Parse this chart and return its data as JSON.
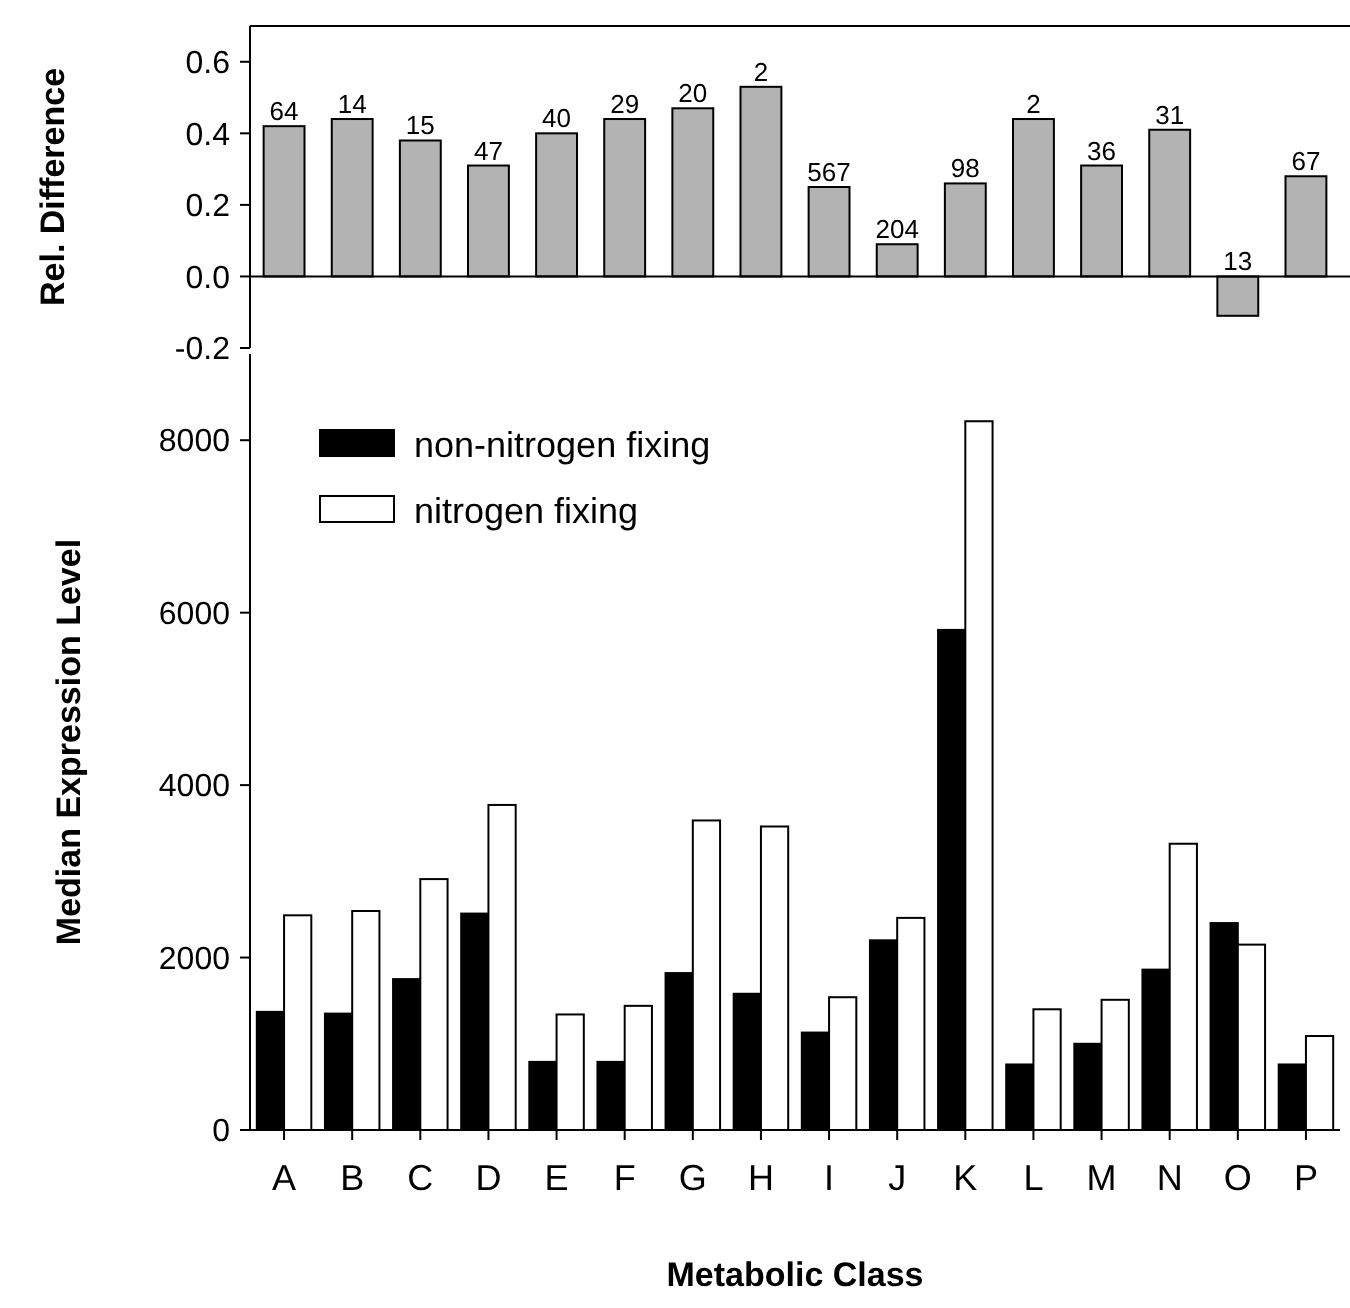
{
  "chart_data": [
    {
      "type": "bar",
      "ylabel": "Rel. Difference",
      "categories": [
        "A",
        "B",
        "C",
        "D",
        "E",
        "F",
        "G",
        "H",
        "I",
        "J",
        "K",
        "L",
        "M",
        "N",
        "O",
        "P"
      ],
      "tick_labels": "y",
      "ylim": [
        -0.2,
        0.7
      ],
      "yticks": [
        {
          "value": -0.2,
          "label": "-0.2"
        },
        {
          "value": 0,
          "label": "0.0"
        },
        {
          "value": 0.2,
          "label": "0.2"
        },
        {
          "value": 0.4,
          "label": "0.4"
        },
        {
          "value": 0.6,
          "label": "0.6"
        }
      ],
      "ref_lines": [
        {
          "axis": "y",
          "value": 0,
          "color": "#000000"
        }
      ],
      "series": [
        {
          "color": "#b3b3b3",
          "values": [
            0.42,
            0.44,
            0.38,
            0.31,
            0.4,
            0.44,
            0.47,
            0.53,
            0.25,
            0.09,
            0.26,
            0.44,
            0.31,
            0.41,
            -0.11,
            0.28
          ]
        }
      ],
      "annotations": [
        {
          "text": "64",
          "x": "A",
          "y": 0.42
        },
        {
          "text": "14",
          "x": "B",
          "y": 0.44
        },
        {
          "text": "15",
          "x": "C",
          "y": 0.38
        },
        {
          "text": "47",
          "x": "D",
          "y": 0.31
        },
        {
          "text": "40",
          "x": "E",
          "y": 0.4
        },
        {
          "text": "29",
          "x": "F",
          "y": 0.44
        },
        {
          "text": "20",
          "x": "G",
          "y": 0.47
        },
        {
          "text": "2",
          "x": "H",
          "y": 0.53
        },
        {
          "text": "567",
          "x": "I",
          "y": 0.25
        },
        {
          "text": "204",
          "x": "J",
          "y": 0.09
        },
        {
          "text": "98",
          "x": "K",
          "y": 0.26
        },
        {
          "text": "2",
          "x": "L",
          "y": 0.44
        },
        {
          "text": "36",
          "x": "M",
          "y": 0.31
        },
        {
          "text": "31",
          "x": "N",
          "y": 0.41
        },
        {
          "text": "13",
          "x": "O",
          "y": 0
        },
        {
          "text": "67",
          "x": "P",
          "y": 0.28
        }
      ]
    },
    {
      "type": "bar",
      "xlabel": "Metabolic Class",
      "ylabel": "Median Expression Level",
      "categories": [
        "A",
        "B",
        "C",
        "D",
        "E",
        "F",
        "G",
        "H",
        "I",
        "J",
        "K",
        "L",
        "M",
        "N",
        "O",
        "P"
      ],
      "ylim": [
        0,
        9000
      ],
      "yticks": [
        0,
        2000,
        4000,
        6000,
        8000
      ],
      "legend": "top left",
      "series": [
        {
          "name": "non-nitrogen fixing",
          "color": "#000000",
          "values": [
            1370,
            1350,
            1750,
            2510,
            790,
            790,
            1820,
            1580,
            1130,
            2200,
            5800,
            760,
            1000,
            1860,
            2400,
            760
          ]
        },
        {
          "name": "nitrogen fixing",
          "color": "#ffffff",
          "values": [
            2490,
            2540,
            2910,
            3770,
            1340,
            1440,
            3590,
            3520,
            1540,
            2460,
            8220,
            1400,
            1510,
            3320,
            2150,
            1090
          ]
        }
      ]
    }
  ]
}
